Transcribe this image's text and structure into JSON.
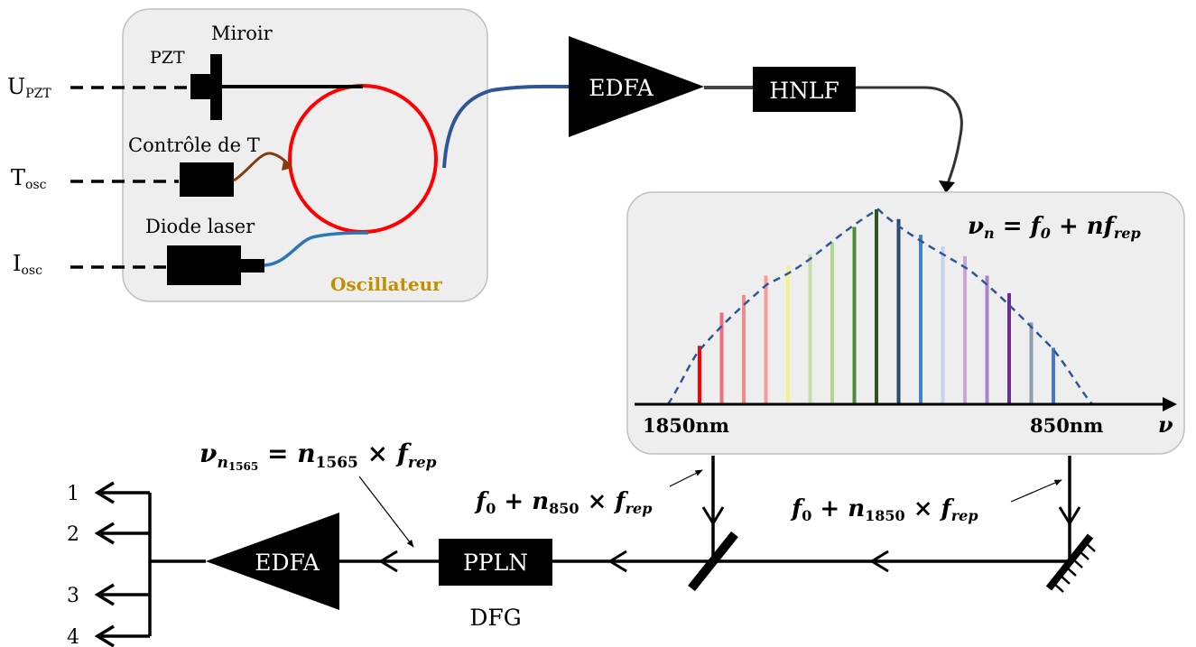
{
  "oscillator": {
    "name": "Oscillateur",
    "mirror_label": "Miroir",
    "pzt_label": "PZT",
    "temp_control_label": "Contrôle de T",
    "diode_label": "Diode laser",
    "inputs": {
      "upzt": {
        "base": "U",
        "sub": "PZT"
      },
      "tosc": {
        "base": "T",
        "sub": "osc"
      },
      "iosc": {
        "base": "I",
        "sub": "osc"
      }
    }
  },
  "components": {
    "edfa_top": "EDFA",
    "hnlf": "HNLF",
    "edfa_bottom": "EDFA",
    "ppln": "PPLN",
    "dfg": "DFG"
  },
  "spectrum": {
    "formula": {
      "nu": "ν",
      "sub_n": "n",
      "eq": " = ",
      "f": "f",
      "sub_0": "0",
      "plus": " + ",
      "n": "n",
      "sub_rep": "rep"
    },
    "left_label": "1850nm",
    "right_label": "850nm",
    "axis_symbol": "ν",
    "comb_lines": [
      {
        "color": "#ff0000",
        "rel": 0.3
      },
      {
        "color": "#f06c7a",
        "rel": 0.47
      },
      {
        "color": "#f28a8a",
        "rel": 0.56
      },
      {
        "color": "#f5999b",
        "rel": 0.66
      },
      {
        "color": "#f5f08a",
        "rel": 0.71
      },
      {
        "color": "#c3e0a6",
        "rel": 0.77
      },
      {
        "color": "#b2d98b",
        "rel": 0.83
      },
      {
        "color": "#4d8c36",
        "rel": 0.91
      },
      {
        "color": "#2f5526",
        "rel": 1.0
      },
      {
        "color": "#2b4a6b",
        "rel": 0.95
      },
      {
        "color": "#3e86c8",
        "rel": 0.87
      },
      {
        "color": "#c7d3ea",
        "rel": 0.81
      },
      {
        "color": "#c9a6d6",
        "rel": 0.76
      },
      {
        "color": "#a883c8",
        "rel": 0.66
      },
      {
        "color": "#6a2f8c",
        "rel": 0.57
      },
      {
        "color": "#8c9fb3",
        "rel": 0.42
      },
      {
        "color": "#4a78c8",
        "rel": 0.29
      }
    ]
  },
  "labels": {
    "beam850": {
      "f": "f",
      "sub0": "0",
      "plus": " +  ",
      "n": "n",
      "subn": "850",
      "times": " × ",
      "f2": "f",
      "subrep": "rep"
    },
    "beam1850": {
      "f": "f",
      "sub0": "0",
      "plus": " +  ",
      "n": "n",
      "subn": "1850",
      "times": " × ",
      "f2": "f",
      "subrep": "rep"
    },
    "output": {
      "nu": "ν",
      "subn": "n",
      "subsub": "1565",
      "eq": " = ",
      "n": "n",
      "subn2": "1565",
      "times": " × ",
      "f": "f",
      "subrep": "rep"
    }
  },
  "outputs": [
    "1",
    "2",
    "3",
    "4"
  ],
  "colors": {
    "ring": "#ff0000",
    "fiber_blue": "#2f5597",
    "fiber_light_blue": "#2e75b6",
    "heater_brown": "#843c0c",
    "oscillator_label": "#bf9000",
    "panel_fill": "#eeeeee",
    "envelope": "#2f5597"
  }
}
